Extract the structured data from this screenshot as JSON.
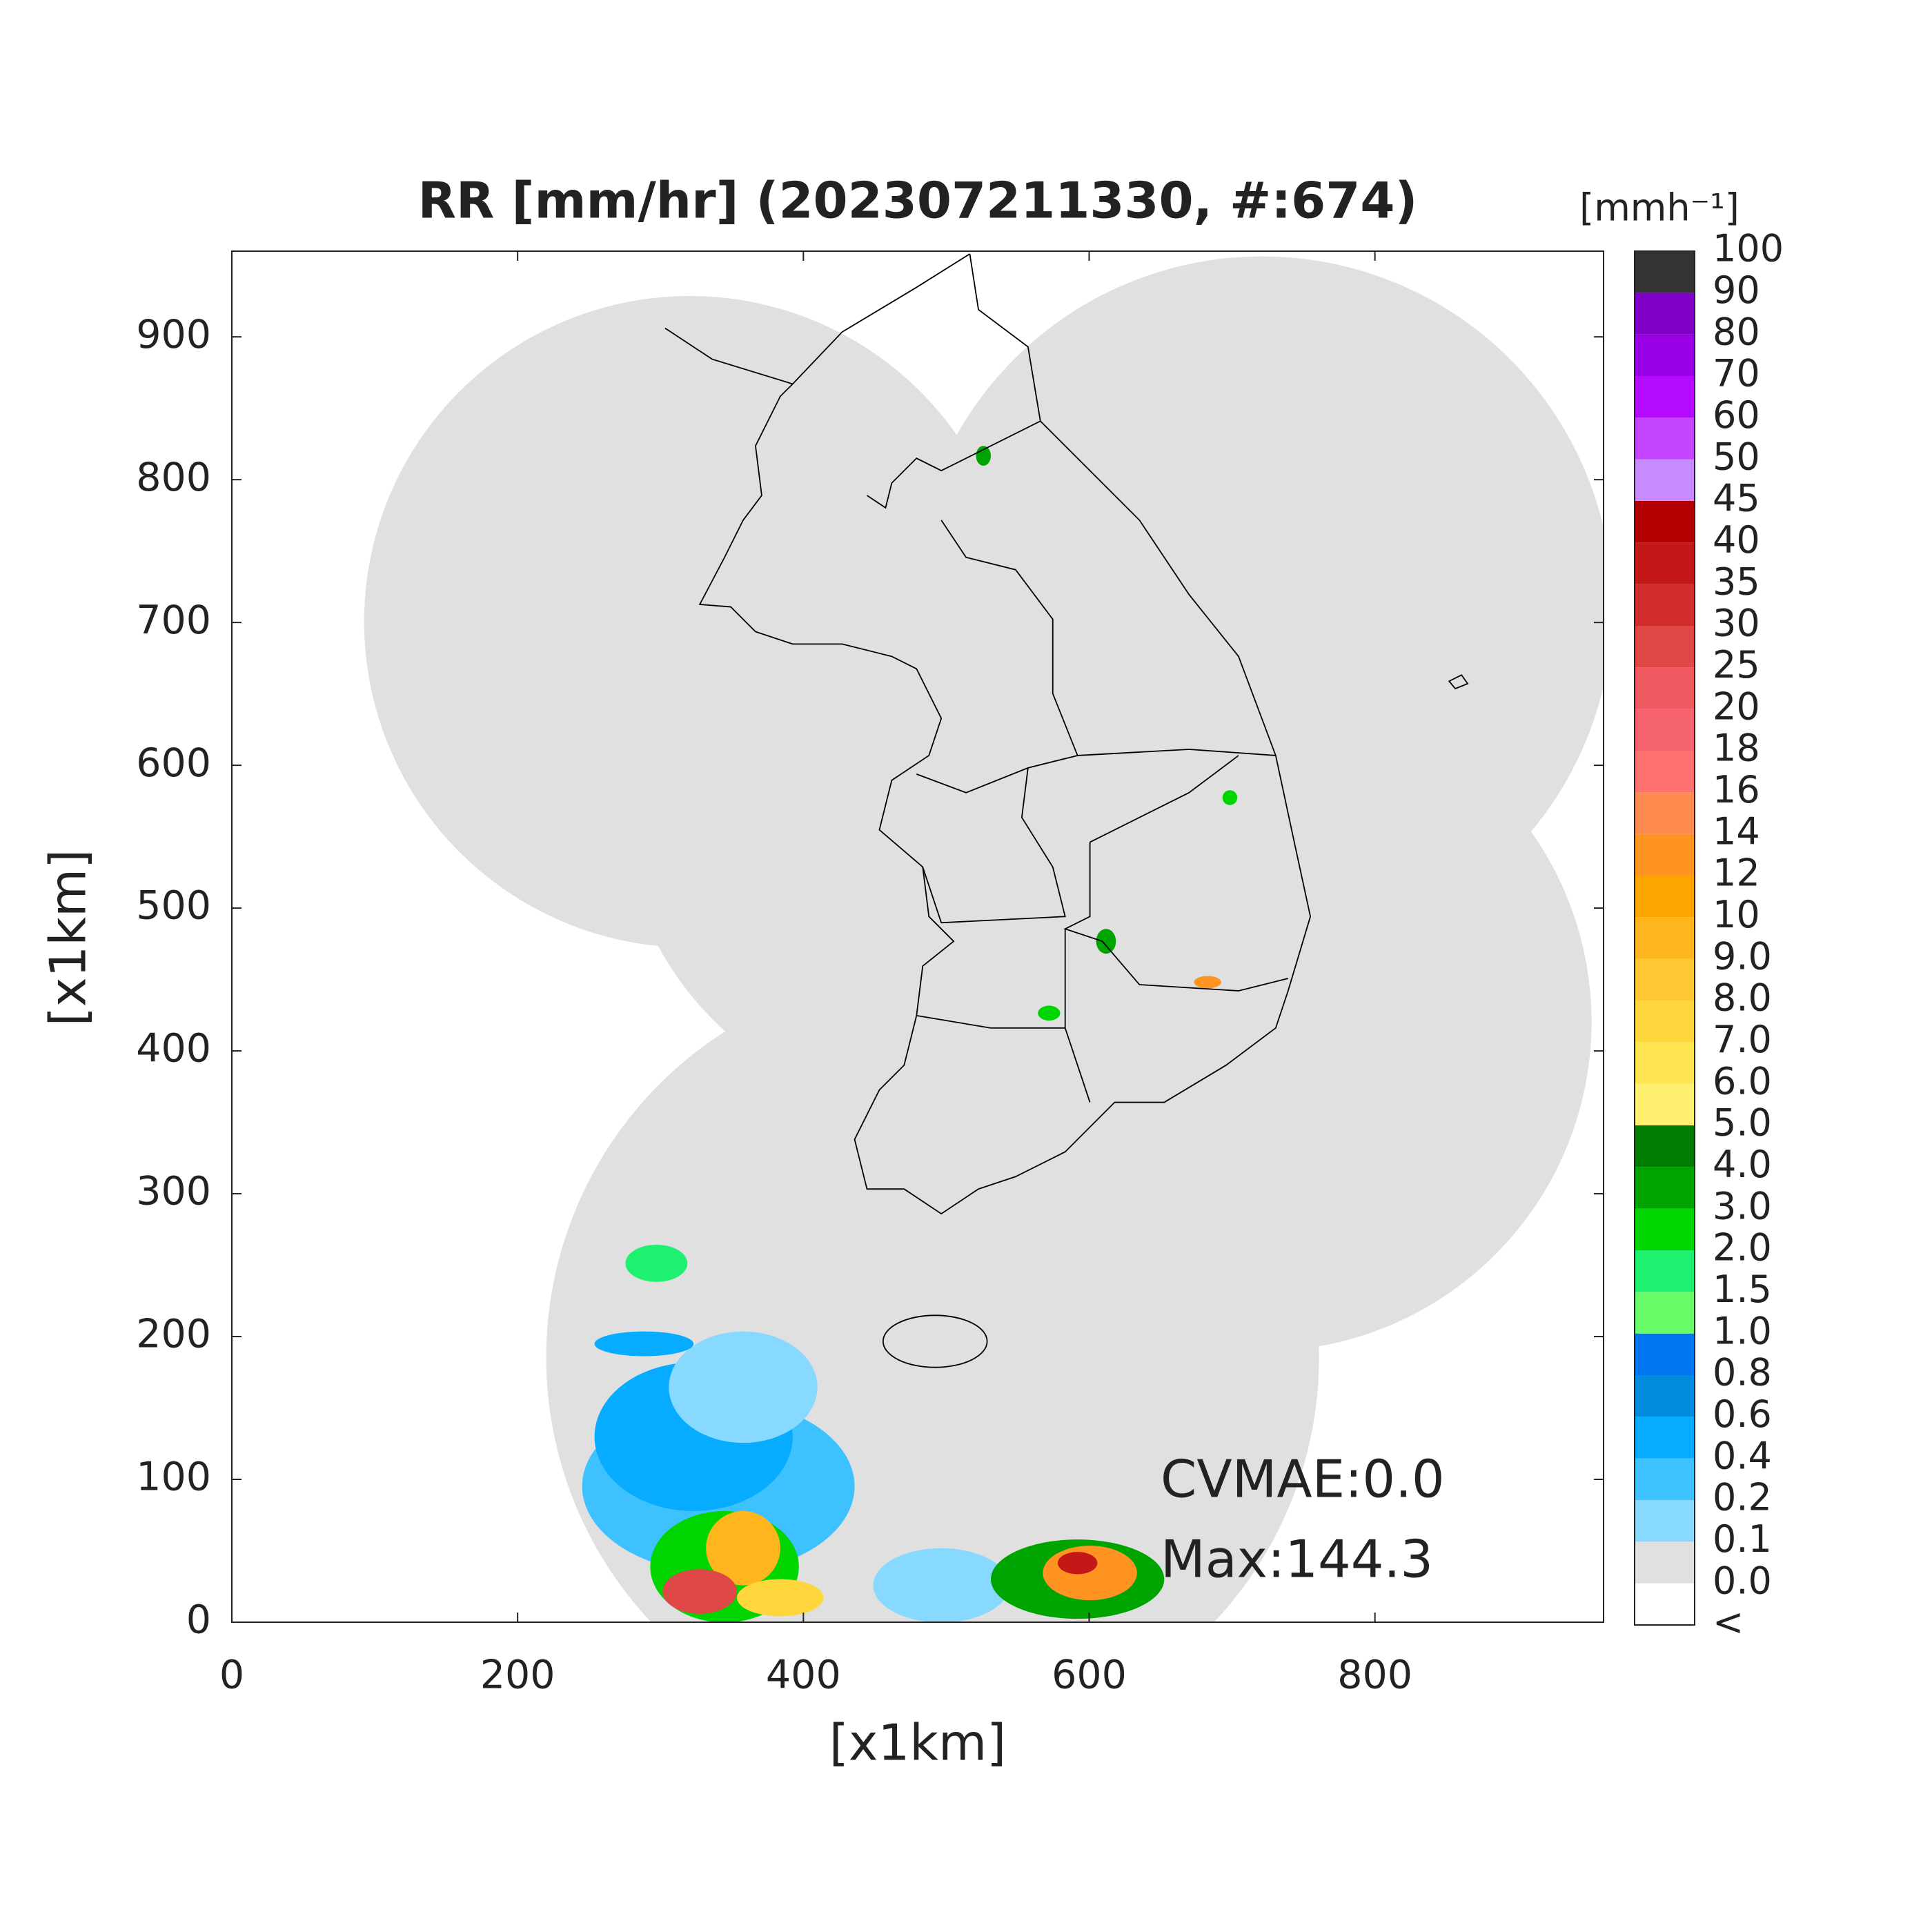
{
  "title": "RR [mm/hr] (202307211330, #:674)",
  "axes": {
    "xlabel": "[x1km]",
    "ylabel": "[x1km]",
    "xlim": [
      0,
      960
    ],
    "ylim": [
      0,
      960
    ],
    "xticks": [
      0,
      200,
      400,
      600,
      800
    ],
    "yticks": [
      0,
      100,
      200,
      300,
      400,
      500,
      600,
      700,
      800,
      900
    ]
  },
  "colorbar": {
    "unit": "[mmh⁻¹]",
    "labels": [
      "<",
      "0.0",
      "0.1",
      "0.2",
      "0.4",
      "0.6",
      "0.8",
      "1.0",
      "1.5",
      "2.0",
      "3.0",
      "4.0",
      "5.0",
      "6.0",
      "7.0",
      "8.0",
      "9.0",
      "10",
      "12",
      "14",
      "16",
      "18",
      "20",
      "25",
      "30",
      "35",
      "40",
      "45",
      "50",
      "60",
      "70",
      "80",
      "90",
      "100"
    ],
    "colors": [
      "#ffffff",
      "#e0e0e0",
      "#87d9ff",
      "#3ec1ff",
      "#07abff",
      "#008dde",
      "#0077f0",
      "#69fc69",
      "#1ef06f",
      "#00d500",
      "#00a400",
      "#007d00",
      "#fff06f",
      "#ffe650",
      "#ffd63c",
      "#ffc832",
      "#ffb61e",
      "#ffa500",
      "#ff9423",
      "#ff8a50",
      "#ff7070",
      "#f5646e",
      "#ee5a60",
      "#e04848",
      "#d22d2d",
      "#c41818",
      "#b30000",
      "#c88aff",
      "#c445ff",
      "#b40aff",
      "#9a00e6",
      "#8100c8",
      "#333333"
    ]
  },
  "annotations": [
    "CVMAE:0.0",
    "Max:144.3"
  ]
}
